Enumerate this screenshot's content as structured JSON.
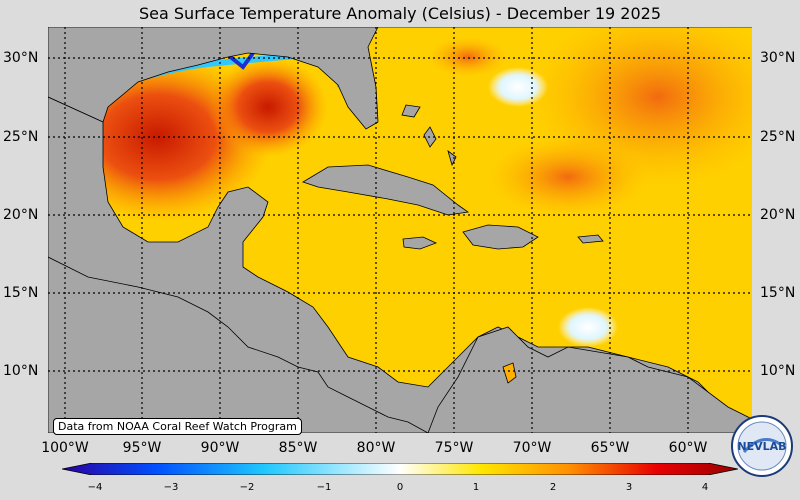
{
  "title": "Sea Surface Temperature Anomaly (Celsius) - December 19 2025",
  "credit": "Data from NOAA Coral Reef Watch Program",
  "lat_labels": [
    "30°N",
    "25°N",
    "20°N",
    "15°N",
    "10°N"
  ],
  "lon_labels": [
    "100°W",
    "95°W",
    "90°W",
    "85°W",
    "80°W",
    "75°W",
    "70°W",
    "65°W",
    "60°W"
  ],
  "colorbar": {
    "ticks": [
      "−4",
      "−3",
      "−2",
      "−1",
      "0",
      "1",
      "2",
      "3",
      "4"
    ],
    "range": [
      -4,
      4
    ],
    "colors": [
      "#2a00a0",
      "#0050ff",
      "#20c8ff",
      "#ffffff",
      "#ffe600",
      "#ff9000",
      "#e80000",
      "#9a0000"
    ]
  },
  "logo_text": "NEVLAB",
  "colors": {
    "land": "#a6a6a6",
    "warm": "#ffd400",
    "hot": "#e23a10",
    "cold": "#3ad0ff"
  }
}
